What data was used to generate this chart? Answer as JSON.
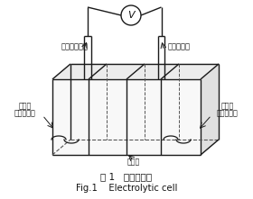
{
  "title_cn": "图 1   双厂电解槽",
  "title_en": "Fig.1    Electrolytic cell",
  "label_anode_electrode": "金山石膜阳极",
  "label_cathode_electrode": "不锈锂阴极",
  "label_anode_tank": "阳极槽",
  "label_anode_stirrer": "磁力搞拌器",
  "label_cathode_tank": "阴极槽",
  "label_cathode_stirrer": "磁力搞拌器",
  "label_membrane": "离子膜",
  "label_voltmeter": "V",
  "bg_color": "#ffffff",
  "line_color": "#1a1a1a",
  "dashed_color": "#555555",
  "font_color": "#111111",
  "fig_width": 2.8,
  "fig_height": 2.21,
  "dpi": 100
}
